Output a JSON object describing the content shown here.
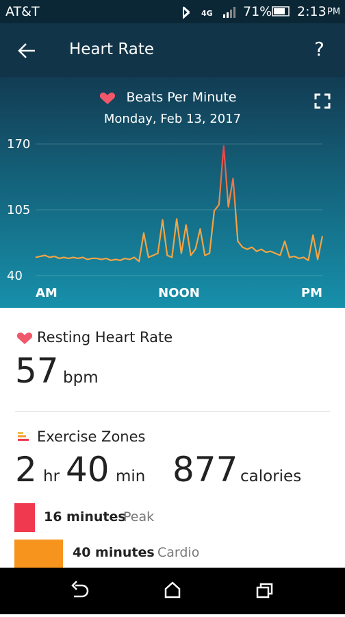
{
  "status_bar": {
    "carrier": "AT&T",
    "battery": "71%",
    "time": "2:13",
    "ampm": "PM"
  },
  "header": {
    "title": "Heart Rate",
    "help": "?"
  },
  "chart_data": {
    "type": "line",
    "title": "Beats Per Minute",
    "subtitle": "Monday, Feb 13, 2017",
    "x_labels": [
      "AM",
      "NOON",
      "PM"
    ],
    "values": [
      58,
      59,
      60,
      58,
      59,
      57,
      58,
      57,
      58,
      57,
      58,
      56,
      57,
      57,
      56,
      57,
      55,
      56,
      55,
      57,
      56,
      58,
      54,
      82,
      58,
      60,
      62,
      95,
      60,
      58,
      96,
      62,
      90,
      60,
      66,
      86,
      60,
      62,
      104,
      110,
      168,
      108,
      136,
      74,
      68,
      66,
      68,
      64,
      66,
      63,
      64,
      62,
      60,
      74,
      58,
      59,
      57,
      58,
      55,
      80,
      56,
      79
    ],
    "color": "#f4a444",
    "peak_color": "#ea3a4c",
    "ylim": [
      40,
      170
    ],
    "yticks": [
      40,
      105,
      170
    ],
    "grid": true
  },
  "resting": {
    "title": "Resting Heart Rate",
    "value": 57,
    "unit": "bpm"
  },
  "exercise": {
    "title": "Exercise Zones",
    "hours": 2,
    "hours_unit": "hr",
    "minutes": 40,
    "minutes_unit": "min",
    "calories": 877,
    "calories_unit": "calories",
    "zones": [
      {
        "minutes": "16 minutes",
        "name": "Peak"
      },
      {
        "minutes": "40 minutes",
        "name": "Cardio"
      }
    ]
  }
}
